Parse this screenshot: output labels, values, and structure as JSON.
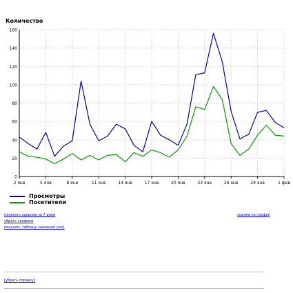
{
  "chart_data": {
    "type": "line",
    "title": "Количество",
    "ylim": [
      0,
      160
    ],
    "yticks": [
      0,
      20,
      40,
      60,
      80,
      100,
      120,
      140,
      160
    ],
    "grid": true,
    "legend_position": "bottom-left",
    "xtick_labels": [
      "2 янв",
      "5 янв",
      "8 янв",
      "11 янв",
      "14 янв",
      "17 янв",
      "20 янв",
      "23 янв",
      "26 янв",
      "29 янв",
      "1 фев"
    ],
    "series": [
      {
        "name": "Просмотры",
        "color": "#000099",
        "values": [
          43,
          36,
          30,
          48,
          22,
          33,
          39,
          104,
          57,
          39,
          44,
          57,
          52,
          34,
          27,
          60,
          45,
          40,
          34,
          57,
          111,
          113,
          156,
          125,
          71,
          41,
          46,
          70,
          72,
          59,
          53
        ]
      },
      {
        "name": "Посетители",
        "color": "#009900",
        "values": [
          27,
          22,
          21,
          19,
          14,
          19,
          25,
          18,
          23,
          18,
          23,
          24,
          16,
          26,
          22,
          29,
          26,
          21,
          29,
          44,
          76,
          73,
          98,
          84,
          36,
          23,
          30,
          45,
          56,
          45,
          44
        ]
      }
    ]
  },
  "links": {
    "averages": "показать средние за 7 дней",
    "select_graph": "убрать графики",
    "table": "показать таблицу значений (csv)",
    "graph_link": "ссылка на график",
    "select_report": "[убрать справку]"
  },
  "colors": {
    "grid": "#c8c8c8",
    "axis": "#000000",
    "link": "#0000cc"
  }
}
